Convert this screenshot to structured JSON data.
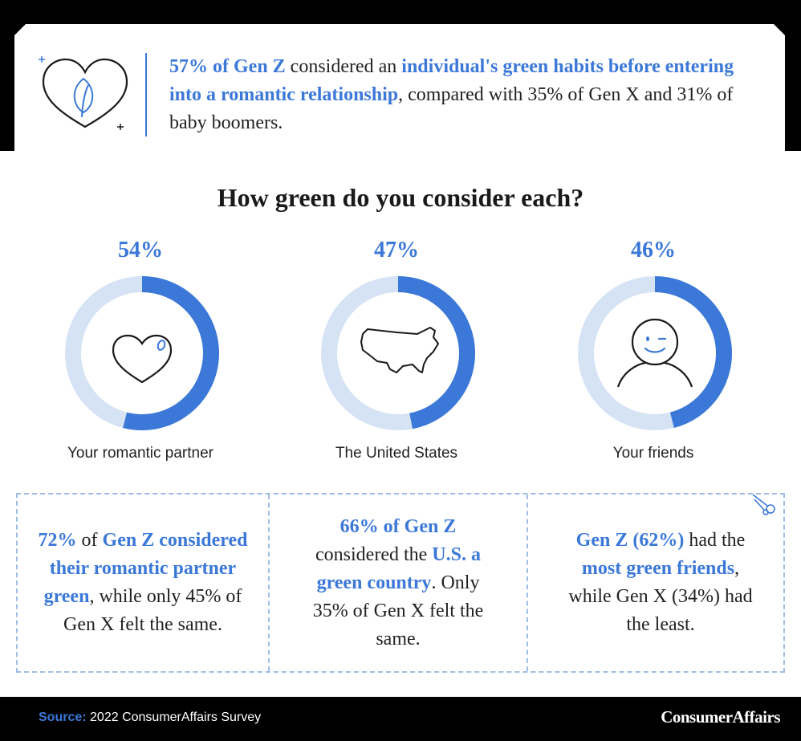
{
  "header": {
    "parts": [
      {
        "text": "57% of Gen Z",
        "highlight": true
      },
      {
        "text": " considered an ",
        "highlight": false
      },
      {
        "text": "individual's green habits before entering into a romantic relationship",
        "highlight": true
      },
      {
        "text": ", compared with 35% of Gen X and 31% of baby boomers.",
        "highlight": false
      }
    ]
  },
  "chart_data": {
    "type": "donut",
    "title": "How green do you consider each?",
    "categories": [
      "Your romantic partner",
      "The United States",
      "Your friends"
    ],
    "values": [
      54,
      47,
      46
    ],
    "value_labels": [
      "54%",
      "47%",
      "46%"
    ],
    "icons": [
      "heart-icon",
      "us-map-icon",
      "smiling-face-icon"
    ]
  },
  "facts": [
    {
      "parts": [
        {
          "text": "72%",
          "highlight": true
        },
        {
          "text": " of ",
          "highlight": false
        },
        {
          "text": "Gen Z considered their romantic partner green",
          "highlight": true
        },
        {
          "text": ", while only 45% of Gen X felt the same.",
          "highlight": false
        }
      ]
    },
    {
      "parts": [
        {
          "text": "66% of Gen Z",
          "highlight": true
        },
        {
          "text": " considered the ",
          "highlight": false
        },
        {
          "text": "U.S. a green country",
          "highlight": true
        },
        {
          "text": ". Only 35% of Gen X felt the same.",
          "highlight": false
        }
      ]
    },
    {
      "parts": [
        {
          "text": "Gen Z (62%)",
          "highlight": true
        },
        {
          "text": " had the ",
          "highlight": false
        },
        {
          "text": "most green friends",
          "highlight": true
        },
        {
          "text": ", while Gen X (34%) had the least.",
          "highlight": false
        }
      ]
    }
  ],
  "footer": {
    "source_label": "Source:",
    "source_text": " 2022 ConsumerAffairs Survey",
    "brand": "ConsumerAffairs"
  },
  "colors": {
    "accent": "#3b78d8",
    "track": "#d6e3f5",
    "text": "#222222",
    "band": "#000000"
  }
}
